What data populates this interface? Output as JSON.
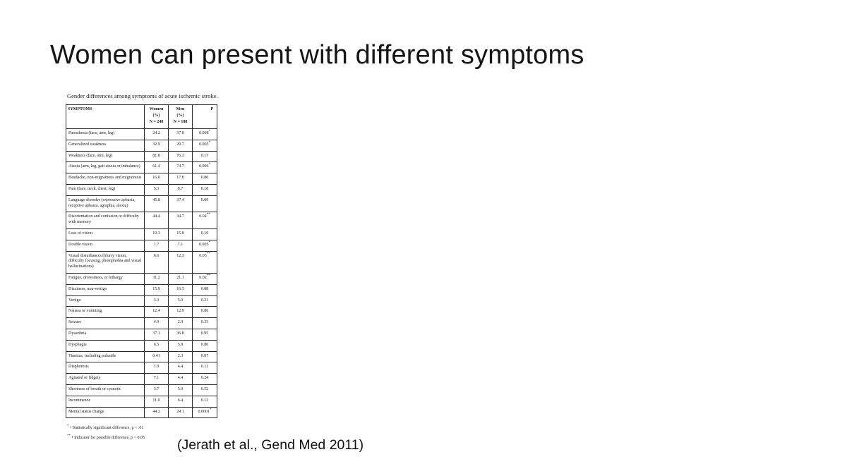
{
  "slide": {
    "title": "Women can present with different symptoms",
    "citation": "(Jerath et al., Gend Med 2011)",
    "background_color": "#ffffff",
    "text_color": "#1a1a1a"
  },
  "table": {
    "caption": "Gender differences among symptoms of acute ischemic stroke.",
    "header": {
      "symptoms": "SYMPTOMS",
      "women": "Women\n(%)\nN = 248",
      "men": "Men\n(%)\nN = 188",
      "p": "P"
    },
    "rows": [
      {
        "symptom": "Paresthesia (face, arm, leg)",
        "women": "24.2",
        "men": "37.0",
        "p": "0.008",
        "mark": "*"
      },
      {
        "symptom": "Generalized weakness",
        "women": "32.9",
        "men": "20.7",
        "p": "0.005",
        "mark": "*"
      },
      {
        "symptom": "Weakness (face, arm, leg)",
        "women": "81.8",
        "men": "76.3",
        "p": "0.17",
        "mark": ""
      },
      {
        "symptom": "Ataxia (arm, leg, gait ataxia or imbalance)",
        "women": "61.4",
        "men": "74.7",
        "p": "0.006",
        "mark": "*"
      },
      {
        "symptom": "Headache, non-migrainous and migrainous",
        "women": "16.0",
        "men": "17.0",
        "p": "0.80",
        "mark": ""
      },
      {
        "symptom": "Pain (face, neck, chest, leg)",
        "women": "5.3",
        "men": "8.7",
        "p": "0.18",
        "mark": ""
      },
      {
        "symptom": "Language disorder (expressive aphasia, receptive aphasia, agraphia, alexia)",
        "women": "45.8",
        "men": "37.4",
        "p": "0.09",
        "mark": ""
      },
      {
        "symptom": "Disorientation and confusion or difficulty with memory",
        "women": "44.4",
        "men": "34.7",
        "p": "0.04",
        "mark": "**"
      },
      {
        "symptom": "Loss of vision",
        "women": "10.3",
        "men": "15.8",
        "p": "0.10",
        "mark": ""
      },
      {
        "symptom": "Double vision",
        "women": "1.7",
        "men": "7.1",
        "p": "0.005",
        "mark": "*"
      },
      {
        "symptom": "Visual disturbances (blurry vision, difficulty focusing, photophobia and visual hallucinations)",
        "women": "6.6",
        "men": "12.3",
        "p": "0.03",
        "mark": "**"
      },
      {
        "symptom": "Fatigue, drowsiness, or lethargy",
        "women": "31.2",
        "men": "21.1",
        "p": "0.02",
        "mark": "**"
      },
      {
        "symptom": "Dizziness, non-vertigo",
        "women": "15.9",
        "men": "16.5",
        "p": "0.88",
        "mark": ""
      },
      {
        "symptom": "Vertigo",
        "women": "3.3",
        "men": "5.0",
        "p": "0.21",
        "mark": ""
      },
      {
        "symptom": "Nausea or vomiting",
        "women": "12.4",
        "men": "12.9",
        "p": "0.86",
        "mark": ""
      },
      {
        "symptom": "Seizure",
        "women": "4.9",
        "men": "2.9",
        "p": "0.33",
        "mark": ""
      },
      {
        "symptom": "Dysarthria",
        "women": "37.1",
        "men": "36.8",
        "p": "0.95",
        "mark": ""
      },
      {
        "symptom": "Dysphagia",
        "women": "6.5",
        "men": "5.8",
        "p": "0.80",
        "mark": ""
      },
      {
        "symptom": "Tinnitus, including pulsatile",
        "women": "0.41",
        "men": "2.3",
        "p": "0.07",
        "mark": ""
      },
      {
        "symptom": "Diaphoresis",
        "women": "1.9",
        "men": "4.4",
        "p": "0.11",
        "mark": ""
      },
      {
        "symptom": "Agitated or fidgety",
        "women": "7.1",
        "men": "4.4",
        "p": "0.24",
        "mark": ""
      },
      {
        "symptom": "Shortness of breath or cyanotic",
        "women": "3.7",
        "men": "5.0",
        "p": "0.52",
        "mark": ""
      },
      {
        "symptom": "Incontinence",
        "women": "11.0",
        "men": "6.4",
        "p": "0.12",
        "mark": ""
      },
      {
        "symptom": "Mental status change",
        "women": "44.2",
        "men": "24.1",
        "p": "0.0001",
        "mark": "*"
      }
    ],
    "footnotes": [
      {
        "mark": "*",
        "text": "• Statistically significant difference, p < .01"
      },
      {
        "mark": "**",
        "text": "• Indicator for possible difference, p < 0.05"
      }
    ]
  }
}
